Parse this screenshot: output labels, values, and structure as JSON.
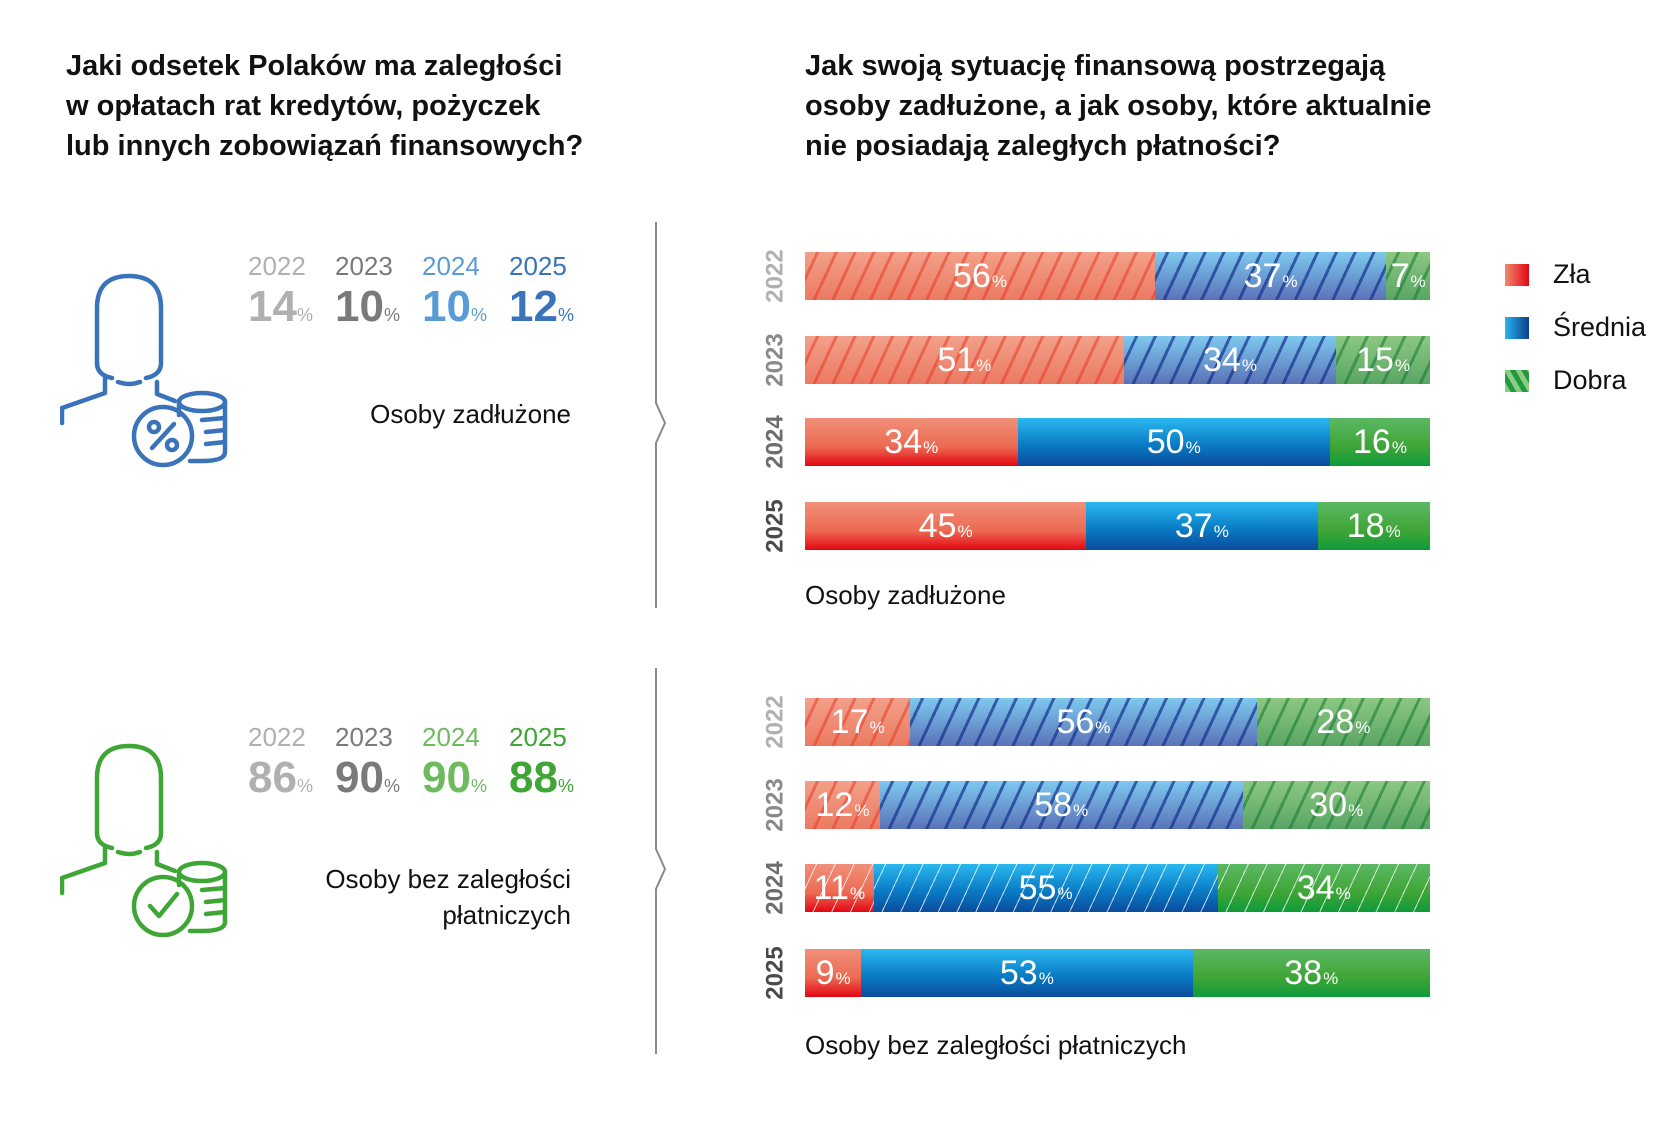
{
  "left": {
    "title": [
      "Jaki odsetek Polaków ma zaległości",
      "w opłatach rat kredytów, pożyczek",
      "lub innych zobowiązań finansowych?"
    ],
    "groups": [
      {
        "icon": "person-coins-percent-icon",
        "color": "#3a73b9",
        "label": [
          "Osoby zadłużone"
        ],
        "years": [
          {
            "year": "2022",
            "value": "14",
            "unit": "%",
            "color": "#b0b0b2"
          },
          {
            "year": "2023",
            "value": "10",
            "unit": "%",
            "color": "#7a7a7d"
          },
          {
            "year": "2024",
            "value": "10",
            "unit": "%",
            "color": "#5b9bd5"
          },
          {
            "year": "2025",
            "value": "12",
            "unit": "%",
            "color": "#3a73b9"
          }
        ]
      },
      {
        "icon": "person-coins-check-icon",
        "color": "#3fa535",
        "label": [
          "Osoby bez zaległości",
          "płatniczych"
        ],
        "years": [
          {
            "year": "2022",
            "value": "86",
            "unit": "%",
            "color": "#b0b0b2"
          },
          {
            "year": "2023",
            "value": "90",
            "unit": "%",
            "color": "#7a7a7d"
          },
          {
            "year": "2024",
            "value": "90",
            "unit": "%",
            "color": "#6dba5f"
          },
          {
            "year": "2025",
            "value": "88",
            "unit": "%",
            "color": "#3fa535"
          }
        ]
      }
    ]
  },
  "right": {
    "title": [
      "Jak swoją sytuację finansową postrzegają",
      "osoby zadłużone, a jak osoby, które aktualnie",
      "nie posiadają zaległych płatności?"
    ]
  },
  "chart_data": {
    "type": "bar",
    "orientation": "horizontal-stacked-100",
    "title": "Jak swoją sytuację finansową postrzegają osoby zadłużone, a jak osoby, które aktualnie nie posiadają zaległych płatności?",
    "legend": {
      "placement": "right",
      "entries": [
        {
          "name": "Zła",
          "color_light": "#f08a6e",
          "color_dark": "#e30613"
        },
        {
          "name": "Średnia",
          "color_light": "#29b6ef",
          "color_dark": "#0a4c9c"
        },
        {
          "name": "Dobra",
          "color_light": "#6cbd62",
          "color_dark": "#0e9a3b"
        }
      ]
    },
    "unit": "%",
    "panels": [
      {
        "label": "Osoby zadłużone",
        "categories": [
          "2022",
          "2023",
          "2024",
          "2025"
        ],
        "hatched": [
          true,
          true,
          false,
          false
        ],
        "series": [
          {
            "name": "Zła",
            "values": [
              56,
              51,
              34,
              45
            ]
          },
          {
            "name": "Średnia",
            "values": [
              37,
              34,
              50,
              37
            ]
          },
          {
            "name": "Dobra",
            "values": [
              7,
              15,
              16,
              18
            ]
          }
        ]
      },
      {
        "label": "Osoby bez zaległości płatniczych",
        "categories": [
          "2022",
          "2023",
          "2024",
          "2025"
        ],
        "hatched": [
          true,
          true,
          true,
          false
        ],
        "series": [
          {
            "name": "Zła",
            "values": [
              17,
              12,
              11,
              9
            ]
          },
          {
            "name": "Średnia",
            "values": [
              56,
              58,
              55,
              53
            ]
          },
          {
            "name": "Dobra",
            "values": [
              28,
              30,
              34,
              38
            ]
          }
        ]
      }
    ],
    "year_label_colors": [
      "#b0b0b2",
      "#8a8a8d",
      "#6d6d70",
      "#4a4a4d"
    ]
  }
}
